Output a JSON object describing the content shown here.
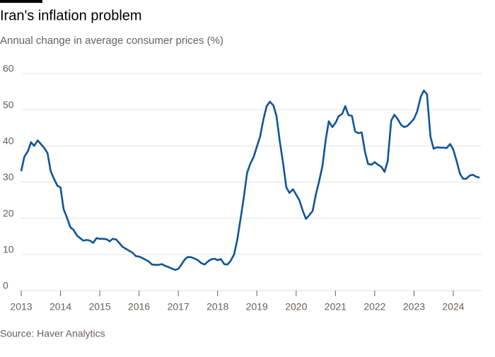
{
  "chart_data": {
    "type": "line",
    "title": "Iran's inflation problem",
    "subtitle": "Annual change in average consumer prices (%)",
    "source": "Source: Haver Analytics",
    "xlim": [
      2013,
      2024.72
    ],
    "xticks": [
      2013,
      2014,
      2015,
      2016,
      2017,
      2018,
      2019,
      2020,
      2021,
      2022,
      2023,
      2024
    ],
    "ylim": [
      0,
      60
    ],
    "yticks": [
      0,
      10,
      20,
      30,
      40,
      50,
      60
    ],
    "grid": true,
    "x": [
      2013,
      2013.08,
      2013.17,
      2013.25,
      2013.33,
      2013.42,
      2013.5,
      2013.58,
      2013.67,
      2013.75,
      2013.83,
      2013.92,
      2014,
      2014.08,
      2014.17,
      2014.25,
      2014.33,
      2014.42,
      2014.5,
      2014.58,
      2014.67,
      2014.75,
      2014.83,
      2014.92,
      2015,
      2015.08,
      2015.17,
      2015.25,
      2015.33,
      2015.42,
      2015.5,
      2015.58,
      2015.67,
      2015.75,
      2015.83,
      2015.92,
      2016,
      2016.08,
      2016.17,
      2016.25,
      2016.33,
      2016.42,
      2016.5,
      2016.58,
      2016.67,
      2016.75,
      2016.83,
      2016.92,
      2017,
      2017.08,
      2017.17,
      2017.25,
      2017.33,
      2017.42,
      2017.5,
      2017.58,
      2017.67,
      2017.75,
      2017.83,
      2017.92,
      2018,
      2018.08,
      2018.17,
      2018.25,
      2018.33,
      2018.42,
      2018.5,
      2018.58,
      2018.67,
      2018.75,
      2018.83,
      2018.92,
      2019,
      2019.08,
      2019.17,
      2019.25,
      2019.33,
      2019.42,
      2019.5,
      2019.58,
      2019.67,
      2019.75,
      2019.83,
      2019.92,
      2020,
      2020.08,
      2020.17,
      2020.25,
      2020.33,
      2020.42,
      2020.5,
      2020.58,
      2020.67,
      2020.75,
      2020.83,
      2020.92,
      2021,
      2021.08,
      2021.17,
      2021.25,
      2021.33,
      2021.42,
      2021.5,
      2021.58,
      2021.67,
      2021.75,
      2021.83,
      2021.92,
      2022,
      2022.08,
      2022.17,
      2022.25,
      2022.33,
      2022.42,
      2022.5,
      2022.58,
      2022.67,
      2022.75,
      2022.83,
      2022.92,
      2023,
      2023.08,
      2023.17,
      2023.25,
      2023.33,
      2023.42,
      2023.5,
      2023.58,
      2023.67,
      2023.75,
      2023.83,
      2023.92,
      2024,
      2024.08,
      2024.17,
      2024.25,
      2024.33,
      2024.42,
      2024.5,
      2024.58,
      2024.67
    ],
    "series": [
      {
        "color": "#0f5499",
        "values": [
          33,
          37,
          38.5,
          41,
          40,
          41.5,
          40.5,
          39.5,
          38,
          33,
          31,
          29,
          28.5,
          22.5,
          20,
          17.5,
          16.8,
          15.2,
          14.5,
          13.8,
          14,
          13.8,
          13.2,
          14.5,
          14.3,
          14.3,
          14.2,
          13.6,
          14.3,
          14.1,
          13.1,
          12.1,
          11.5,
          11,
          10.5,
          9.5,
          9.4,
          9,
          8.5,
          8,
          7.2,
          7.1,
          7.1,
          7.3,
          6.8,
          6.5,
          6.1,
          5.7,
          6,
          7.2,
          8.7,
          9.3,
          9.2,
          8.8,
          8.4,
          7.6,
          7.2,
          8,
          8.6,
          8.8,
          8.4,
          8.7,
          7.3,
          7.2,
          8.2,
          10,
          14,
          19.5,
          26,
          32.5,
          35,
          37,
          39.8,
          42.5,
          47.5,
          51,
          52.2,
          51.2,
          48.2,
          41.5,
          35,
          28.5,
          27,
          28,
          26.5,
          25,
          22,
          19.8,
          20.8,
          22,
          26.5,
          30,
          34.5,
          41.5,
          46.8,
          45.2,
          46.3,
          48.2,
          48.8,
          51,
          48.5,
          48.3,
          44,
          43.5,
          43.7,
          38.5,
          35,
          34.8,
          35.5,
          34.8,
          34.2,
          32.8,
          35.8,
          47,
          48.6,
          47.5,
          45.8,
          45.2,
          45.5,
          46.5,
          47.5,
          49.5,
          53.5,
          55.3,
          54.3,
          42.5,
          39.2,
          39.6,
          39.5,
          39.5,
          39.4,
          40.5,
          39,
          36,
          32.3,
          30.9,
          30.9,
          31.8,
          32,
          31.5,
          31.2
        ]
      }
    ]
  }
}
